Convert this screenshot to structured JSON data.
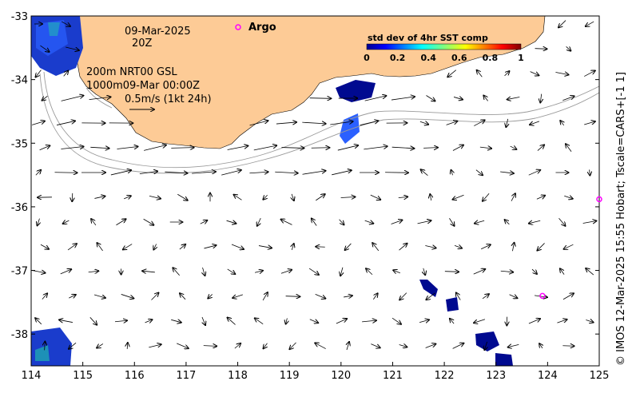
{
  "map": {
    "date": "09-Mar-2025",
    "hour": "20Z",
    "argo_label": "Argo",
    "contours": "200m  NRT00 GSL",
    "contours2": "1000m09-Mar 00:00Z",
    "scale_label": "0.5m/s (1kt 24h)",
    "credit": "© IMOS 12-Mar-2025 15:55 Hobart; Tscale=CARS+[-1 1]",
    "colorbar_title": "std dev of 4hr SST comp",
    "colorbar_ticks": [
      "0",
      "0.2",
      "0.4",
      "0.6",
      "0.8",
      "1"
    ],
    "x_ticks": [
      "114",
      "115",
      "116",
      "117",
      "118",
      "119",
      "120",
      "121",
      "122",
      "123",
      "124",
      "125"
    ],
    "y_ticks": [
      "-33",
      "-34",
      "-35",
      "-36",
      "-37",
      "-38"
    ],
    "lon_range": [
      114,
      125
    ],
    "lat_range": [
      -38.5,
      -33
    ],
    "argo_floats": [
      {
        "lon": 118.0,
        "lat": -33.17
      },
      {
        "lon": 125.0,
        "lat": -35.88
      },
      {
        "lon": 123.9,
        "lat": -37.4
      }
    ],
    "colors": {
      "land": "#fdcb96",
      "argo": "#ff00ff",
      "ocean": "#ffffff"
    }
  }
}
